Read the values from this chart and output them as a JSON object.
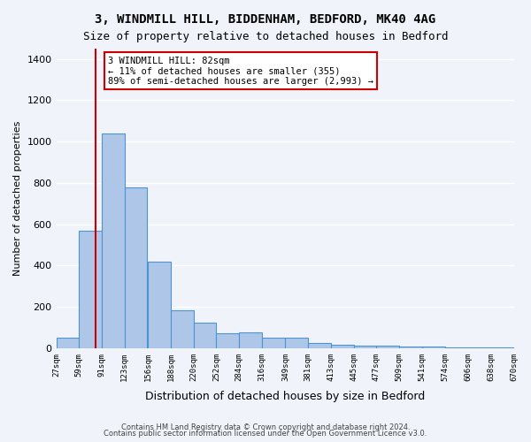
{
  "title1": "3, WINDMILL HILL, BIDDENHAM, BEDFORD, MK40 4AG",
  "title2": "Size of property relative to detached houses in Bedford",
  "xlabel": "Distribution of detached houses by size in Bedford",
  "ylabel": "Number of detached properties",
  "bar_color": "#aec6e8",
  "bar_edge_color": "#4d94d4",
  "bins": [
    27,
    59,
    91,
    123,
    156,
    188,
    220,
    252,
    284,
    316,
    349,
    381,
    413,
    445,
    477,
    509,
    541,
    574,
    606,
    638,
    670
  ],
  "counts": [
    50,
    570,
    1040,
    780,
    420,
    185,
    125,
    70,
    75,
    50,
    50,
    25,
    15,
    12,
    10,
    8,
    6,
    5,
    4,
    3
  ],
  "tick_labels": [
    "27sqm",
    "59sqm",
    "91sqm",
    "123sqm",
    "156sqm",
    "188sqm",
    "220sqm",
    "252sqm",
    "284sqm",
    "316sqm",
    "349sqm",
    "381sqm",
    "413sqm",
    "445sqm",
    "477sqm",
    "509sqm",
    "541sqm",
    "574sqm",
    "606sqm",
    "638sqm",
    "670sqm"
  ],
  "property_size": 82,
  "red_line_color": "#cc0000",
  "annotation_text": "3 WINDMILL HILL: 82sqm\n← 11% of detached houses are smaller (355)\n89% of semi-detached houses are larger (2,993) →",
  "annotation_box_color": "#ffffff",
  "annotation_box_edge": "#cc0000",
  "ylim": [
    0,
    1450
  ],
  "yticks": [
    0,
    200,
    400,
    600,
    800,
    1000,
    1200,
    1400
  ],
  "footer1": "Contains HM Land Registry data © Crown copyright and database right 2024.",
  "footer2": "Contains public sector information licensed under the Open Government Licence v3.0.",
  "bg_color": "#f0f4fa",
  "grid_color": "#ffffff"
}
